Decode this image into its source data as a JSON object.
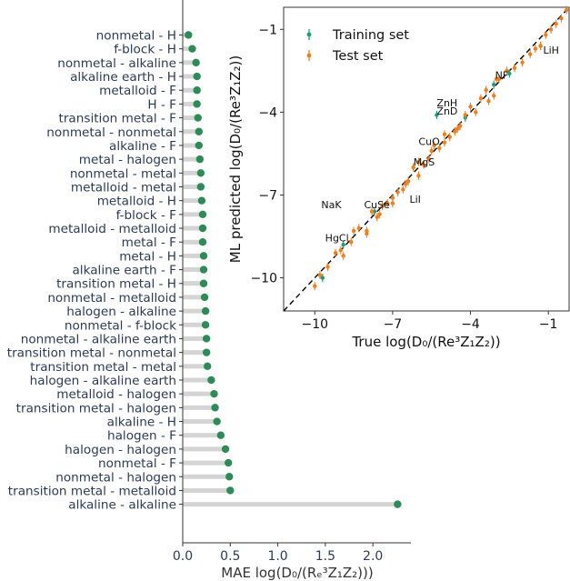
{
  "chart_data": [
    {
      "type": "lollipop",
      "orientation": "horizontal",
      "xlabel": "MAE log(D₀/(Rₑ³Z₁Z₂)))",
      "xlim": [
        0,
        2.4
      ],
      "xticks": [
        "0.0",
        "0.5",
        "1.0",
        "1.5",
        "2.0"
      ],
      "grid": false,
      "colors": {
        "stem": "#d4d4d4",
        "dot": "#2e8b57",
        "label": "#2a3b55"
      },
      "categories": [
        "nonmetal - H",
        "f-block - H",
        "nonmetal - alkaline",
        "alkaline earth - H",
        "metalloid - F",
        "H - F",
        "transition metal - F",
        "nonmetal - nonmetal",
        "alkaline - F",
        "metal - halogen",
        "nonmetal - metal",
        "metalloid - metal",
        "metalloid - H",
        "f-block - F",
        "metalloid - metalloid",
        "metal - F",
        "metal - H",
        "alkaline earth - F",
        "transition metal - H",
        "nonmetal - metalloid",
        "halogen - alkaline",
        "nonmetal - f-block",
        "nonmetal - alkaline earth",
        "transition metal - nonmetal",
        "transition metal - metal",
        "halogen - alkaline earth",
        "metalloid - halogen",
        "transition metal - halogen",
        "alkaline - H",
        "halogen - F",
        "halogen - halogen",
        "nonmetal - F",
        "nonmetal - halogen",
        "transition metal - metalloid",
        "alkaline - alkaline"
      ],
      "values": [
        0.06,
        0.1,
        0.14,
        0.15,
        0.15,
        0.15,
        0.16,
        0.17,
        0.17,
        0.18,
        0.19,
        0.19,
        0.2,
        0.21,
        0.21,
        0.21,
        0.22,
        0.22,
        0.22,
        0.23,
        0.24,
        0.24,
        0.25,
        0.25,
        0.26,
        0.3,
        0.33,
        0.34,
        0.36,
        0.4,
        0.45,
        0.48,
        0.49,
        0.5,
        2.26
      ]
    },
    {
      "type": "scatter",
      "xlabel": "True log(D₀/(Re³Z₁Z₂))",
      "ylabel": "ML predicted log(D₀/(Re³Z₁Z₂))",
      "xlim": [
        -11.2,
        -0.2
      ],
      "ylim": [
        -11.2,
        -0.2
      ],
      "xticks": [
        -10,
        -7,
        -4,
        -1
      ],
      "yticks": [
        -10,
        -7,
        -4,
        -1
      ],
      "legend_position": "top-left",
      "grid": false,
      "colors": {
        "training": "#1b9e77",
        "test": "#f07f20",
        "diagonal": "#000000"
      },
      "series": [
        {
          "name": "Training set",
          "x": [
            -1.3,
            -3.1,
            -5.3,
            -6.2,
            -6.4,
            -7.7,
            -9.7,
            -4.2,
            -2.5,
            -8.9
          ],
          "y": [
            -1.6,
            -3.0,
            -4.1,
            -6.0,
            -6.5,
            -7.6,
            -10.0,
            -4.2,
            -2.6,
            -8.8
          ]
        },
        {
          "name": "Test set",
          "x": [
            -0.3,
            -0.5,
            -0.7,
            -0.9,
            -1.1,
            -1.3,
            -1.5,
            -1.7,
            -2.0,
            -2.3,
            -2.6,
            -2.9,
            -3.1,
            -3.4,
            -3.6,
            -3.8,
            -4.0,
            -4.2,
            -4.4,
            -4.6,
            -4.8,
            -5.0,
            -5.2,
            -5.4,
            -5.6,
            -5.8,
            -6.0,
            -6.2,
            -6.4,
            -6.6,
            -6.8,
            -7.0,
            -7.2,
            -7.4,
            -7.6,
            -7.8,
            -8.0,
            -8.3,
            -8.6,
            -8.9,
            -9.2,
            -9.5,
            -9.8,
            -10.0,
            -3.3,
            -3.0,
            -4.5,
            -5.0,
            -5.5,
            -6.0,
            -6.5,
            -7.0,
            -7.5,
            -8.0,
            -8.5,
            -9.0
          ],
          "y": [
            -0.3,
            -0.6,
            -0.8,
            -1.0,
            -1.2,
            -1.6,
            -1.7,
            -1.9,
            -2.2,
            -2.4,
            -2.5,
            -2.8,
            -3.4,
            -3.2,
            -3.5,
            -4.0,
            -3.8,
            -4.1,
            -4.5,
            -4.7,
            -4.9,
            -4.8,
            -5.3,
            -5.2,
            -5.7,
            -5.9,
            -6.3,
            -6.0,
            -6.5,
            -6.8,
            -6.9,
            -7.3,
            -7.3,
            -7.4,
            -7.8,
            -7.6,
            -8.3,
            -8.2,
            -8.7,
            -9.2,
            -9.1,
            -9.6,
            -9.9,
            -10.3,
            -3.6,
            -2.8,
            -4.6,
            -5.1,
            -5.4,
            -5.8,
            -6.6,
            -7.1,
            -7.7,
            -8.4,
            -8.3,
            -9.0
          ]
        }
      ],
      "annotations": [
        {
          "text": "LiH",
          "x": -1.2,
          "y": -1.75
        },
        {
          "text": "NF",
          "x": -3.05,
          "y": -2.65
        },
        {
          "text": "ZnH",
          "x": -5.3,
          "y": -3.65
        },
        {
          "text": "ZnD",
          "x": -5.3,
          "y": -3.95
        },
        {
          "text": "CuO",
          "x": -6.0,
          "y": -5.05
        },
        {
          "text": "MgS",
          "x": -6.2,
          "y": -5.8
        },
        {
          "text": "NaK",
          "x": -9.75,
          "y": -7.35
        },
        {
          "text": "CuSe",
          "x": -8.1,
          "y": -7.35
        },
        {
          "text": "LiI",
          "x": -6.35,
          "y": -7.15
        },
        {
          "text": "HgCl",
          "x": -9.6,
          "y": -8.55
        }
      ]
    }
  ]
}
